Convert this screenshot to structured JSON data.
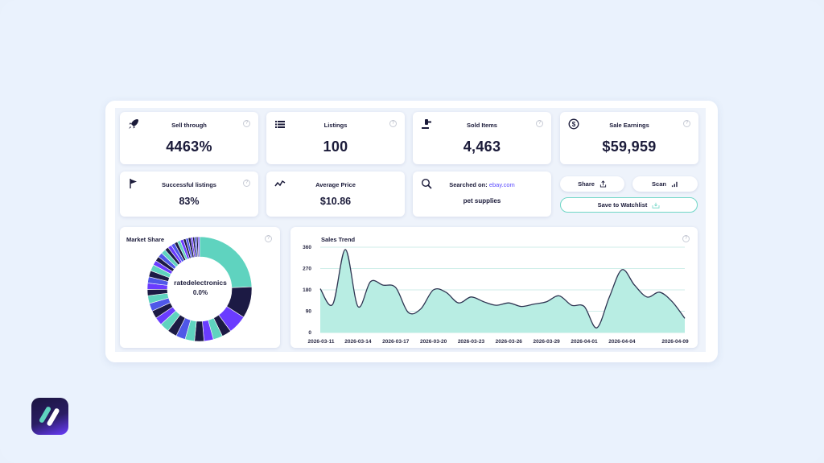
{
  "stats": {
    "sell_through": {
      "title": "Sell through",
      "value": "4463%"
    },
    "listings": {
      "title": "Listings",
      "value": "100"
    },
    "sold_items": {
      "title": "Sold Items",
      "value": "4,463"
    },
    "sale_earnings": {
      "title": "Sale Earnings",
      "value": "$59,959"
    },
    "successful_listings": {
      "title": "Successful listings",
      "value": "83%"
    },
    "average_price": {
      "title": "Average Price",
      "value": "$10.86"
    },
    "searched_on": {
      "title": "Searched on:",
      "site": "ebay.com",
      "query": "pet supplies"
    }
  },
  "actions": {
    "share_label": "Share",
    "scan_label": "Scan",
    "watchlist_label": "Save to Watchlist"
  },
  "market_share": {
    "title": "Market Share",
    "center_label": "ratedelectronics",
    "center_value": "0.0%"
  },
  "colors": {
    "teal": "#5fd3bf",
    "teal_fill": "#b8ede3",
    "navy": "#1c1a44",
    "purple": "#6a3cff",
    "blue": "#4f57e8"
  },
  "chart_data": {
    "type": "area",
    "title": "Sales Trend",
    "x": [
      "2026-03-11",
      "2026-03-12",
      "2026-03-13",
      "2026-03-14",
      "2026-03-15",
      "2026-03-16",
      "2026-03-17",
      "2026-03-18",
      "2026-03-19",
      "2026-03-20",
      "2026-03-21",
      "2026-03-22",
      "2026-03-23",
      "2026-03-24",
      "2026-03-25",
      "2026-03-26",
      "2026-03-27",
      "2026-03-28",
      "2026-03-29",
      "2026-03-30",
      "2026-03-31",
      "2026-04-01",
      "2026-04-02",
      "2026-04-03",
      "2026-04-04",
      "2026-04-05",
      "2026-04-06",
      "2026-04-07",
      "2026-04-08",
      "2026-04-09"
    ],
    "values": [
      185,
      120,
      350,
      110,
      215,
      200,
      190,
      85,
      100,
      180,
      170,
      125,
      150,
      130,
      115,
      125,
      110,
      120,
      130,
      155,
      115,
      110,
      20,
      150,
      265,
      200,
      150,
      170,
      130,
      60
    ],
    "x_tick_labels": [
      "2026-03-11",
      "2026-03-14",
      "2026-03-17",
      "2026-03-20",
      "2026-03-23",
      "2026-03-26",
      "2026-03-29",
      "2026-04-01",
      "2026-04-04",
      "2026-04-09"
    ],
    "y_ticks": [
      "0",
      "90",
      "180",
      "270",
      "360"
    ],
    "ylim": [
      0,
      360
    ],
    "grid": true
  },
  "donut_data": {
    "type": "pie",
    "slices": [
      {
        "value": 25,
        "color": "#5fd3bf"
      },
      {
        "value": 10,
        "color": "#1c1a44"
      },
      {
        "value": 6,
        "color": "#6a3cff"
      },
      {
        "value": 3,
        "color": "#1c1a44"
      },
      {
        "value": 3,
        "color": "#5fd3bf"
      },
      {
        "value": 3,
        "color": "#6a3cff"
      },
      {
        "value": 3,
        "color": "#1c1a44"
      },
      {
        "value": 3,
        "color": "#5fd3bf"
      },
      {
        "value": 3,
        "color": "#4f57e8"
      },
      {
        "value": 3,
        "color": "#1c1a44"
      },
      {
        "value": 3,
        "color": "#5fd3bf"
      },
      {
        "value": 2.5,
        "color": "#6a3cff"
      },
      {
        "value": 2.5,
        "color": "#1c1a44"
      },
      {
        "value": 2.5,
        "color": "#4f57e8"
      },
      {
        "value": 2.5,
        "color": "#5fd3bf"
      },
      {
        "value": 2,
        "color": "#1c1a44"
      },
      {
        "value": 2,
        "color": "#6a3cff"
      },
      {
        "value": 2,
        "color": "#4f57e8"
      },
      {
        "value": 2,
        "color": "#1c1a44"
      },
      {
        "value": 2,
        "color": "#5fd3bf"
      },
      {
        "value": 1.5,
        "color": "#6a3cff"
      },
      {
        "value": 1.5,
        "color": "#1c1a44"
      },
      {
        "value": 1.5,
        "color": "#4f57e8"
      },
      {
        "value": 1.5,
        "color": "#5fd3bf"
      },
      {
        "value": 1.2,
        "color": "#1c1a44"
      },
      {
        "value": 1.2,
        "color": "#6a3cff"
      },
      {
        "value": 1.2,
        "color": "#4f57e8"
      },
      {
        "value": 1,
        "color": "#1c1a44"
      },
      {
        "value": 1,
        "color": "#5fd3bf"
      },
      {
        "value": 1,
        "color": "#6a3cff"
      },
      {
        "value": 0.8,
        "color": "#1c1a44"
      },
      {
        "value": 0.8,
        "color": "#4f57e8"
      },
      {
        "value": 0.8,
        "color": "#1c1a44"
      },
      {
        "value": 0.6,
        "color": "#6a3cff"
      },
      {
        "value": 0.6,
        "color": "#1c1a44"
      },
      {
        "value": 0.6,
        "color": "#4f57e8"
      },
      {
        "value": 0.5,
        "color": "#1c1a44"
      },
      {
        "value": 0.5,
        "color": "#6a3cff"
      }
    ]
  }
}
